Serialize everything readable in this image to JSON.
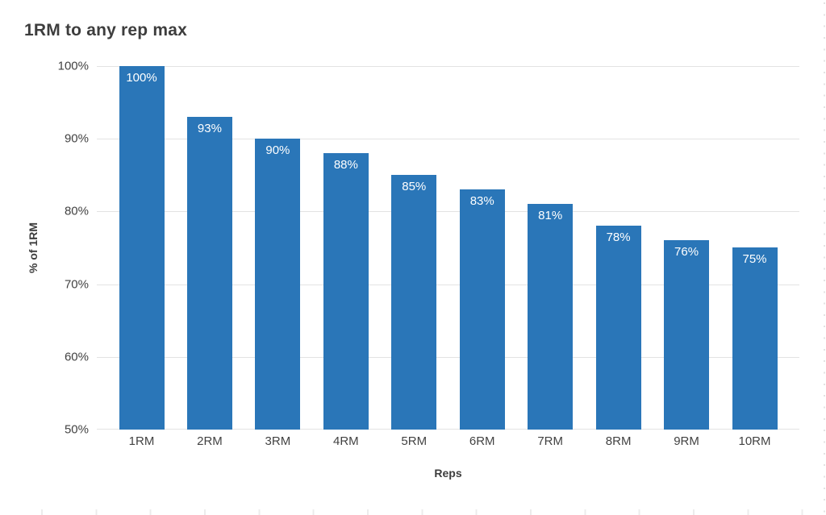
{
  "chart_data": {
    "type": "bar",
    "title": "1RM to any rep max",
    "xlabel": "Reps",
    "ylabel": "% of 1RM",
    "categories": [
      "1RM",
      "2RM",
      "3RM",
      "4RM",
      "5RM",
      "6RM",
      "7RM",
      "8RM",
      "9RM",
      "10RM"
    ],
    "values": [
      100,
      93,
      90,
      88,
      85,
      83,
      81,
      78,
      76,
      75
    ],
    "bar_labels": [
      "100%",
      "93%",
      "90%",
      "88%",
      "85%",
      "83%",
      "81%",
      "78%",
      "76%",
      "75%"
    ],
    "ylim": [
      50,
      100
    ],
    "yticks": [
      100,
      90,
      80,
      70,
      60,
      50
    ],
    "ytick_labels": [
      "100%",
      "90%",
      "80%",
      "70%",
      "60%",
      "50%"
    ],
    "grid": true,
    "legend": "none",
    "colors": {
      "bar": "#2a76b8",
      "bar_label_text": "#ffffff",
      "gridline": "#e3e3e3",
      "axis_text": "#424242",
      "title_text": "#3d3d3d",
      "background": "#ffffff"
    }
  }
}
